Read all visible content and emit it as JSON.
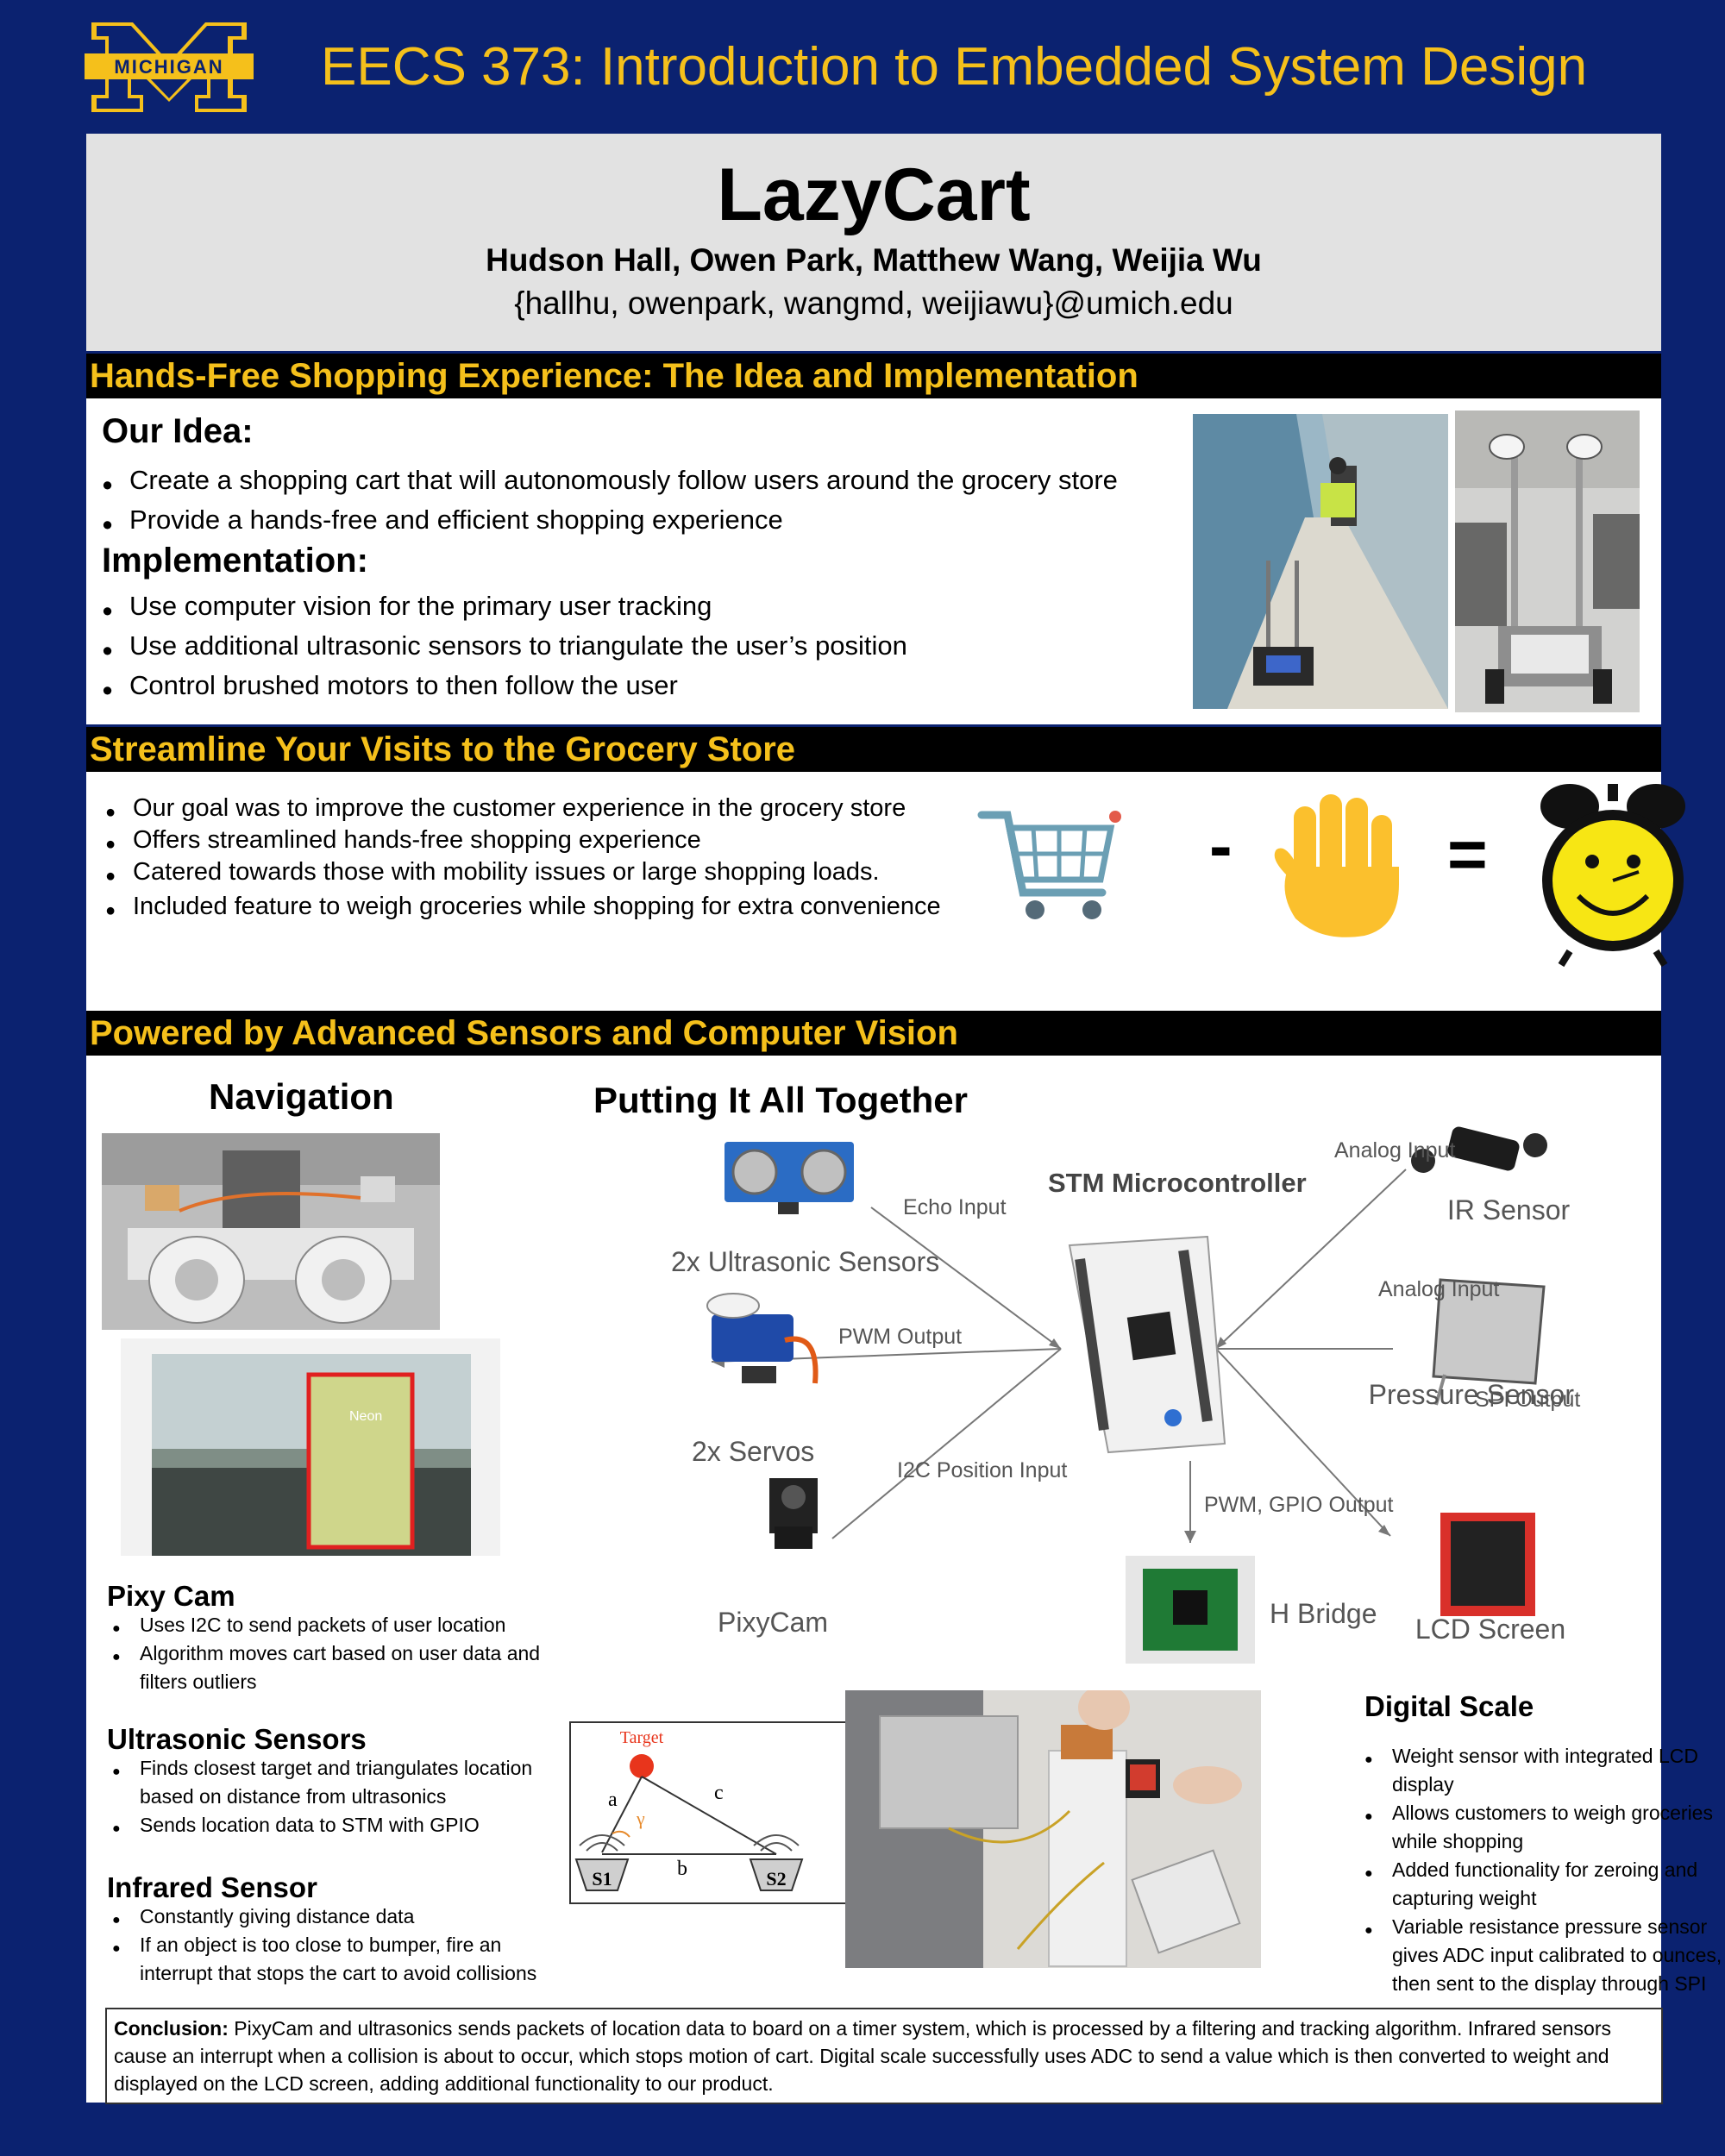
{
  "header": {
    "logo_text": "MICHIGAN",
    "course_title": "EECS 373: Introduction to Embedded System Design"
  },
  "title_box": {
    "title": "LazyCart",
    "authors": "Hudson Hall, Owen Park, Matthew Wang, Weijia Wu",
    "emails": "{hallhu, owenpark, wangmd, weijiawu}@umich.edu"
  },
  "section1": {
    "heading": "Hands-Free Shopping Experience: The Idea and Implementation",
    "idea_heading": "Our Idea:",
    "idea_items": [
      "Create a shopping cart that will autonomously follow users around the grocery store",
      "Provide a hands-free and efficient shopping experience"
    ],
    "impl_heading": "Implementation:",
    "impl_items": [
      "Use computer vision for the primary user tracking",
      "Use additional ultrasonic sensors to triangulate the user’s position",
      "Control brushed motors to then follow the user"
    ]
  },
  "section2": {
    "heading": "Streamline Your Visits to the Grocery Store",
    "items": [
      "Our goal was to improve the customer experience in the grocery store",
      "Offers streamlined hands-free shopping experience",
      "Catered towards those with mobility issues or large shopping loads.",
      "Included feature to weigh groceries while shopping for extra convenience"
    ],
    "equation": {
      "minus": "-",
      "equals": "="
    }
  },
  "section3": {
    "heading": "Powered by Advanced Sensors and Computer Vision",
    "navigation_heading": "Navigation",
    "camera_box_label": "Neon",
    "pixy": {
      "heading": "Pixy Cam",
      "items": [
        "Uses I2C to send packets of user location",
        "Algorithm moves cart based on user data and filters outliers"
      ]
    },
    "ultrasonic": {
      "heading": "Ultrasonic Sensors",
      "items": [
        "Finds closest target and triangulates location based on distance from ultrasonics",
        "Sends location data to STM with GPIO"
      ]
    },
    "infrared": {
      "heading": "Infrared Sensor",
      "items": [
        "Constantly giving distance data",
        "If an object is too close to bumper, fire an interrupt that stops the cart to avoid collisions"
      ]
    },
    "diagram_heading": "Putting It All Together",
    "diagram": {
      "mcu": "STM Microcontroller",
      "ultrasonic": "2x Ultrasonic Sensors",
      "servos": "2x Servos",
      "pixycam": "PixyCam",
      "ir": "IR Sensor",
      "pressure": "Pressure Sensor",
      "lcd": "LCD Screen",
      "hbridge": "H Bridge",
      "echo": "Echo Input",
      "pwm": "PWM Output",
      "i2c": "I2C Position Input",
      "analog1": "Analog Input",
      "analog2": "Analog Input",
      "spi": "SPI Output",
      "pwm_gpio": "PWM, GPIO Output"
    },
    "triangulation": {
      "target": "Target",
      "a": "a",
      "b": "b",
      "c": "c",
      "gamma": "γ",
      "s1": "S1",
      "s2": "S2"
    },
    "scale": {
      "heading": "Digital Scale",
      "items": [
        "Weight sensor with integrated LCD display",
        "Allows customers to weigh groceries while shopping",
        "Added functionality for zeroing and capturing weight",
        "Variable resistance pressure sensor gives ADC input calibrated to ounces, then sent to the display through SPI"
      ]
    },
    "conclusion": {
      "label": "Conclusion:",
      "text": "PixyCam and ultrasonics sends packets of location data to board on a timer system, which is processed by a filtering and tracking algorithm. Infrared sensors cause an interrupt when a collision is about to occur, which stops motion of cart. Digital scale successfully uses ADC to send a value which is then converted to weight and displayed on the LCD screen, adding additional functionality to our product."
    }
  }
}
